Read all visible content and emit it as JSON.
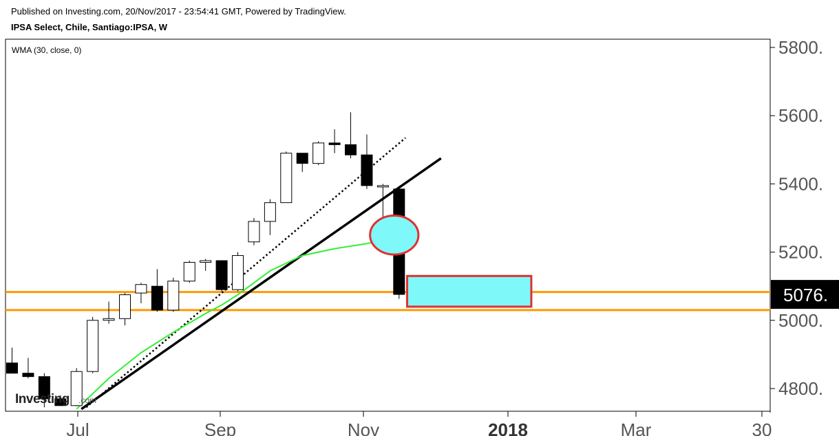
{
  "header": {
    "published": "Published on Investing.com, 20/Nov/2017 - 23:54:41 GMT, Powered by TradingView.",
    "symbol": "IPSA Select, Chile, Santiago:IPSA, W"
  },
  "indicator_label": "WMA (30, close, 0)",
  "watermark": {
    "main": "Investing",
    "suffix": ".com"
  },
  "colors": {
    "up_body": "#ffffff",
    "down_body": "#000000",
    "wick": "#000000",
    "wma": "#33ee33",
    "support": "#ff9900",
    "highlight_fill": "#7ff8fa",
    "highlight_border": "#e03030",
    "last_price_bg": "#000000",
    "last_price_text": "#ffffff",
    "axis_text": "#555555"
  },
  "chart_data": {
    "type": "candlestick",
    "period": "weekly",
    "y_ticks": [
      4800,
      5000,
      5200,
      5400,
      5600,
      5800
    ],
    "y_tick_labels": [
      "4800.",
      "5000.",
      "5200.",
      "5400.",
      "5600.",
      "5800."
    ],
    "ylim": [
      4730,
      5830
    ],
    "x_tick_labels": [
      "Jul",
      "Sep",
      "Nov",
      "2018",
      "Mar",
      "30"
    ],
    "x_tick_bold": [
      false,
      false,
      false,
      true,
      false,
      false
    ],
    "last_price": 5076,
    "last_price_label": "5076.",
    "candles": [
      {
        "o": 4875,
        "h": 4920,
        "l": 4845,
        "c": 4845
      },
      {
        "o": 4845,
        "h": 4890,
        "l": 4830,
        "c": 4835
      },
      {
        "o": 4835,
        "h": 4845,
        "l": 4745,
        "c": 4770
      },
      {
        "o": 4770,
        "h": 4780,
        "l": 4750,
        "c": 4750
      },
      {
        "o": 4750,
        "h": 4860,
        "l": 4748,
        "c": 4850
      },
      {
        "o": 4850,
        "h": 5010,
        "l": 4845,
        "c": 5000
      },
      {
        "o": 5000,
        "h": 5055,
        "l": 4990,
        "c": 5005
      },
      {
        "o": 5005,
        "h": 5080,
        "l": 4985,
        "c": 5075
      },
      {
        "o": 5080,
        "h": 5110,
        "l": 5050,
        "c": 5105
      },
      {
        "o": 5100,
        "h": 5150,
        "l": 5025,
        "c": 5030
      },
      {
        "o": 5030,
        "h": 5125,
        "l": 5025,
        "c": 5115
      },
      {
        "o": 5115,
        "h": 5175,
        "l": 5110,
        "c": 5170
      },
      {
        "o": 5170,
        "h": 5180,
        "l": 5145,
        "c": 5175
      },
      {
        "o": 5175,
        "h": 5175,
        "l": 5085,
        "c": 5090
      },
      {
        "o": 5090,
        "h": 5200,
        "l": 5085,
        "c": 5190
      },
      {
        "o": 5230,
        "h": 5300,
        "l": 5220,
        "c": 5290
      },
      {
        "o": 5290,
        "h": 5355,
        "l": 5250,
        "c": 5345
      },
      {
        "o": 5345,
        "h": 5495,
        "l": 5345,
        "c": 5490
      },
      {
        "o": 5490,
        "h": 5490,
        "l": 5435,
        "c": 5460
      },
      {
        "o": 5460,
        "h": 5525,
        "l": 5455,
        "c": 5520
      },
      {
        "o": 5520,
        "h": 5560,
        "l": 5490,
        "c": 5515
      },
      {
        "o": 5515,
        "h": 5610,
        "l": 5475,
        "c": 5485
      },
      {
        "o": 5485,
        "h": 5545,
        "l": 5385,
        "c": 5395
      },
      {
        "o": 5395,
        "h": 5400,
        "l": 5250,
        "c": 5395
      },
      {
        "o": 5385,
        "h": 5385,
        "l": 5063,
        "c": 5076
      }
    ],
    "wma": [
      [
        4,
        4740
      ],
      [
        6,
        4830
      ],
      [
        8,
        4905
      ],
      [
        10,
        4965
      ],
      [
        12,
        5020
      ],
      [
        13,
        5045
      ],
      [
        14,
        5075
      ],
      [
        16,
        5145
      ],
      [
        18,
        5190
      ],
      [
        20,
        5210
      ],
      [
        22,
        5225
      ],
      [
        23,
        5235
      ]
    ],
    "support_lines": [
      5083,
      5030
    ],
    "trendlines": [
      {
        "style": "solid",
        "from": [
          4.3,
          4740
        ],
        "to": [
          26.6,
          5475
        ]
      },
      {
        "style": "dotted",
        "from": [
          4.6,
          4745
        ],
        "to": [
          24.4,
          5535
        ]
      }
    ],
    "highlights": [
      {
        "shape": "ellipse",
        "center": [
          23.7,
          5250
        ],
        "radius": [
          1.5,
          57
        ]
      },
      {
        "shape": "rectangle",
        "from": [
          24.5,
          5040
        ],
        "to": [
          32.2,
          5130
        ]
      }
    ]
  }
}
